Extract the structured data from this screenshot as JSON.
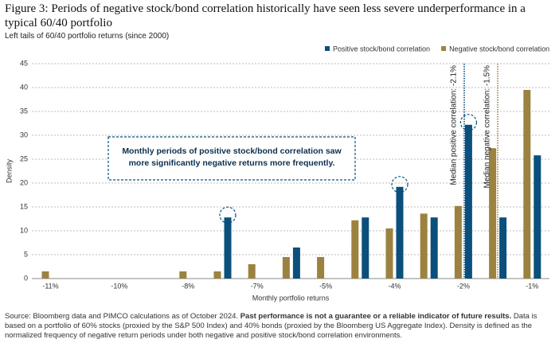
{
  "chart_data": {
    "type": "bar",
    "title": "Figure 3: Periods of negative stock/bond correlation historically have seen less severe underperformance in a typical 60/40 portfolio",
    "subtitle": "Left tails of 60/40 portfolio returns (since 2000)",
    "x_label": "Monthly portfolio returns",
    "y_label": "Density",
    "categories": [
      "-11%",
      null,
      "-10%",
      null,
      "-8%",
      null,
      "-7%",
      null,
      "-5%",
      null,
      "-4%",
      null,
      "-2%",
      null,
      "-1%"
    ],
    "series": [
      {
        "name": "Positive stock/bond correlation",
        "color": "#0b4f7c",
        "values": [
          0,
          0,
          0,
          0,
          0,
          12.8,
          0,
          6.5,
          0,
          12.8,
          19.2,
          12.8,
          32.2,
          12.8,
          25.8
        ]
      },
      {
        "name": "Negative stock/bond correlation",
        "color": "#9c8240",
        "values": [
          1.5,
          0,
          0,
          0,
          1.5,
          1.5,
          3,
          4.5,
          4.5,
          12.2,
          10.5,
          13.6,
          15.2,
          27.3,
          39.5
        ]
      }
    ],
    "ylim": [
      0,
      45
    ],
    "yticks": [
      0,
      5,
      10,
      15,
      20,
      25,
      30,
      35,
      40,
      45
    ],
    "grid": true,
    "medians": [
      {
        "label": "Median positive correlation: -2.1%",
        "color": "#0b4f7c"
      },
      {
        "label": "Median negative correlation: -1.5%",
        "color": "#9c8240"
      }
    ],
    "annotation": "Monthly periods of positive stock/bond correlation saw more significantly negative returns more frequently.",
    "source": [
      "Source: Bloomberg data and PIMCO calculations as of October 2024.",
      "Past performance is not a guarantee or a reliable indicator of future results.",
      "Data is based on a portfolio of 60% stocks (proxied by the S&P 500 Index) and 40% bonds (proxied by the Bloomberg US Aggregate Index). Density is defined as the normalized frequency of negative return periods under both negative and positive stock/bond correlation environments."
    ]
  }
}
